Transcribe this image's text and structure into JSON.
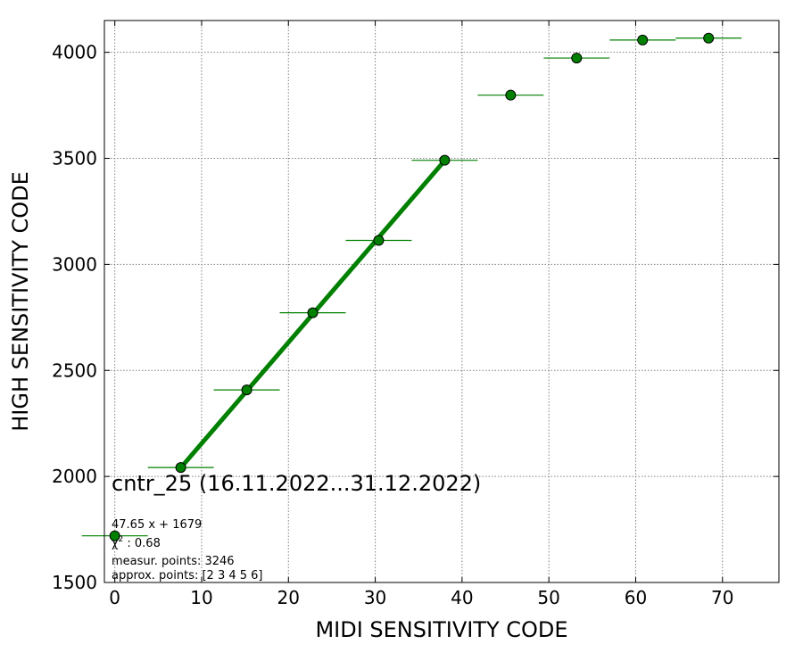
{
  "chart_data": {
    "type": "scatter",
    "xlabel": "MIDI SENSITIVITY CODE",
    "ylabel": "HIGH SENSITIVITY CODE",
    "xlim": [
      -1.2,
      76.5
    ],
    "ylim": [
      1500,
      4150
    ],
    "xticks": [
      0,
      10,
      20,
      30,
      40,
      50,
      60,
      70
    ],
    "yticks": [
      1500,
      2000,
      2500,
      3000,
      3500,
      4000
    ],
    "grid": true,
    "colors": {
      "marker": "#008000",
      "fit": "#008000",
      "errbar": "#008000",
      "grid": "#808080"
    },
    "points": [
      {
        "x": 0,
        "y": 1720,
        "xerr": 3.8
      },
      {
        "x": 7.6,
        "y": 2042,
        "xerr": 3.8
      },
      {
        "x": 15.2,
        "y": 2408,
        "xerr": 3.8
      },
      {
        "x": 22.8,
        "y": 2772,
        "xerr": 3.8
      },
      {
        "x": 30.4,
        "y": 3113,
        "xerr": 3.8
      },
      {
        "x": 38.0,
        "y": 3491,
        "xerr": 3.8
      },
      {
        "x": 45.6,
        "y": 3798,
        "xerr": 3.8
      },
      {
        "x": 53.2,
        "y": 3973,
        "xerr": 3.8
      },
      {
        "x": 60.8,
        "y": 4058,
        "xerr": 3.8
      },
      {
        "x": 68.4,
        "y": 4067,
        "xerr": 3.8
      }
    ],
    "fit": {
      "slope": 47.65,
      "intercept": 1679,
      "x_from": 7.6,
      "x_to": 38.0
    },
    "annotations": {
      "title": "cntr_25 (16.11.2022...31.12.2022)",
      "equation": "47.65 x + 1679",
      "chi2_symbol": "χ",
      "chi2_exp": "2",
      "chi2_value": " : 0.68",
      "measur": "measur. points: 3246",
      "approx": "approx. points: [2 3 4 5 6]"
    }
  }
}
